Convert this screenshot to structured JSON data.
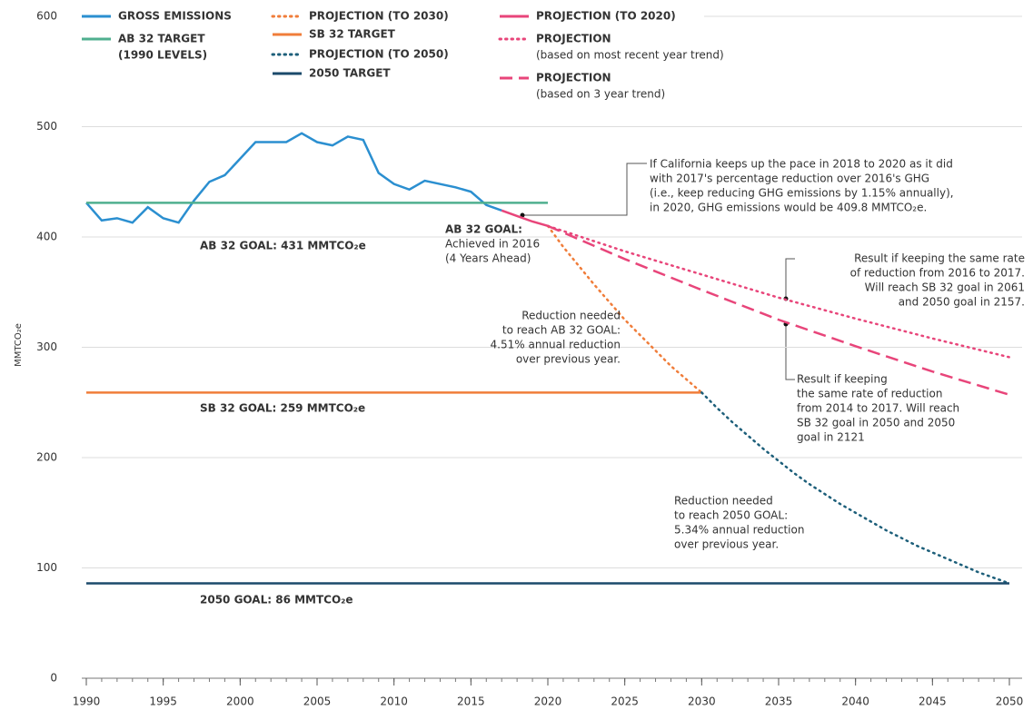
{
  "chart_data": {
    "type": "line",
    "ylabel": "MMTCO₂e",
    "xlim": [
      1990,
      2050
    ],
    "xticks": [
      1990,
      1995,
      2000,
      2005,
      2010,
      2015,
      2020,
      2025,
      2030,
      2035,
      2040,
      2045,
      2050
    ],
    "ylim": [
      0,
      600
    ],
    "yticks": [
      0,
      100,
      200,
      300,
      400,
      500,
      600
    ],
    "grid": true,
    "series": [
      {
        "name": "GROSS EMISSIONS",
        "color": "#2b8fd0",
        "style": "solid",
        "x": [
          1990,
          1991,
          1992,
          1993,
          1994,
          1995,
          1996,
          1997,
          1998,
          1999,
          2000,
          2001,
          2002,
          2003,
          2004,
          2005,
          2006,
          2007,
          2008,
          2009,
          2010,
          2011,
          2012,
          2013,
          2014,
          2015,
          2016,
          2017
        ],
        "values": [
          431,
          415,
          417,
          413,
          427,
          417,
          413,
          433,
          450,
          456,
          471,
          486,
          486,
          486,
          494,
          486,
          483,
          491,
          488,
          458,
          448,
          443,
          451,
          448,
          445,
          441,
          429,
          424
        ]
      },
      {
        "name": "AB 32 TARGET",
        "legend_note": "(1990 LEVELS)",
        "color": "#4faf8f",
        "style": "solid",
        "x": [
          1990,
          2020
        ],
        "values": [
          431,
          431
        ]
      },
      {
        "name": "PROJECTION (TO 2030)",
        "color": "#f07d3a",
        "style": "dotted",
        "x": [
          2020,
          2021,
          2022,
          2023,
          2024,
          2025,
          2026,
          2027,
          2028,
          2029,
          2030
        ],
        "values": [
          410,
          391,
          374,
          357,
          341,
          325,
          311,
          297,
          283,
          271,
          259
        ]
      },
      {
        "name": "SB 32 TARGET",
        "color": "#f07d3a",
        "style": "solid",
        "x": [
          1990,
          2030
        ],
        "values": [
          259,
          259
        ]
      },
      {
        "name": "PROJECTION (TO 2050)",
        "color": "#1d5f7a",
        "style": "dotted",
        "x": [
          2030,
          2031,
          2032,
          2033,
          2034,
          2035,
          2036,
          2037,
          2038,
          2039,
          2040,
          2041,
          2042,
          2043,
          2044,
          2045,
          2046,
          2047,
          2048,
          2049,
          2050
        ],
        "values": [
          259,
          245,
          232,
          220,
          208,
          197,
          186,
          176,
          167,
          158,
          150,
          142,
          134,
          127,
          120,
          114,
          108,
          102,
          96,
          91,
          86
        ]
      },
      {
        "name": "2050 TARGET",
        "color": "#1b4a6b",
        "style": "solid",
        "x": [
          1990,
          2050
        ],
        "values": [
          86,
          86
        ]
      },
      {
        "name": "PROJECTION (TO 2020)",
        "color": "#e8457a",
        "style": "solid",
        "x": [
          2017,
          2018,
          2019,
          2020
        ],
        "values": [
          424,
          419,
          414,
          410
        ]
      },
      {
        "name": "PROJECTION",
        "legend_note": "(based on most recent year trend)",
        "color": "#e8457a",
        "style": "dotted",
        "x": [
          2020,
          2025,
          2030,
          2035,
          2040,
          2045,
          2050
        ],
        "values": [
          410,
          387,
          366,
          345,
          326,
          308,
          291
        ]
      },
      {
        "name": "PROJECTION",
        "legend_note": "(based on 3 year trend)",
        "color": "#e8457a",
        "style": "dashed",
        "x": [
          2020,
          2025,
          2030,
          2035,
          2040,
          2045,
          2050
        ],
        "values": [
          410,
          380,
          352,
          325,
          301,
          278,
          257
        ]
      }
    ],
    "annotations": [
      {
        "lines": [
          "AB 32 GOAL: 431 MMTCO₂e"
        ],
        "color": "#4faf8f"
      },
      {
        "lines": [
          "AB 32 GOAL:",
          "Achieved in 2016",
          "(4 Years Ahead)"
        ],
        "color": "#2b8fd0"
      },
      {
        "lines": [
          "If California keeps up the pace in 2018 to 2020 as it did",
          "with 2017's percentage reduction over 2016's GHG",
          "(i.e., keep reducing GHG emissions by 1.15% annually),",
          "in 2020, GHG emissions would be 409.8 MMTCO₂e."
        ],
        "color": "#8a8a8a"
      },
      {
        "lines": [
          "Result if keeping the same rate",
          "of reduction from 2016 to 2017.",
          "Will reach SB 32 goal in 2061",
          "and 2050 goal in 2157."
        ],
        "color": "#8a8a8a"
      },
      {
        "lines": [
          "Result if keeping",
          "the same rate of reduction",
          "from 2014 to 2017. Will reach",
          "SB 32 goal in 2050 and 2050",
          "goal in 2121"
        ],
        "color": "#8a8a8a"
      },
      {
        "lines": [
          "Reduction needed",
          "to reach AB 32 GOAL:",
          "4.51% annual reduction",
          "over previous year."
        ],
        "color": "#f07d3a"
      },
      {
        "lines": [
          "SB 32 GOAL: 259 MMTCO₂e"
        ],
        "color": "#f07d3a"
      },
      {
        "lines": [
          "Reduction needed",
          "to reach 2050 GOAL:",
          "5.34% annual reduction",
          "over previous year."
        ],
        "color": "#1d5f7a"
      },
      {
        "lines": [
          "2050 GOAL: 86 MMTCO₂e"
        ],
        "color": "#1b4a6b"
      }
    ]
  }
}
